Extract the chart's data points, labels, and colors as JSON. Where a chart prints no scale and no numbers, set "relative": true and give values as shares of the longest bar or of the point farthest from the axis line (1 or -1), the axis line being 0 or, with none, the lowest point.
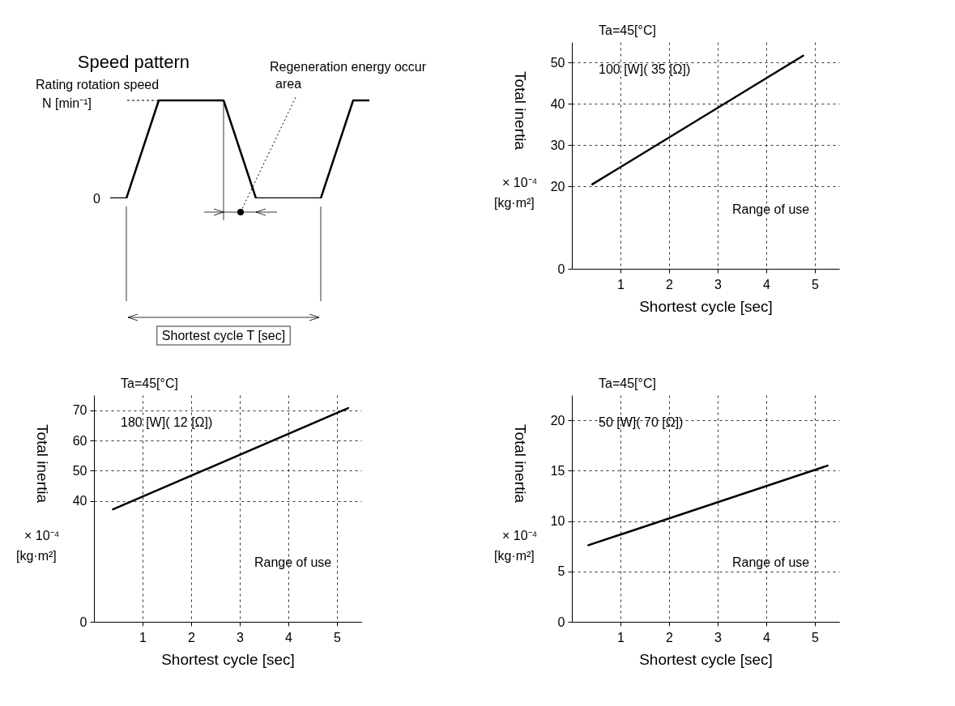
{
  "chart_data": [
    {
      "type": "line",
      "title": "Speed pattern",
      "relative": true,
      "categories": [
        null,
        null,
        null,
        null,
        null,
        null,
        null,
        null,
        null,
        null,
        null,
        null,
        null,
        null,
        null,
        null,
        null
      ],
      "series": [
        {
          "color": "#000000",
          "values": [
            0,
            0,
            0.5,
            1,
            1,
            1,
            1,
            1,
            0.5,
            0,
            0,
            0,
            0,
            0,
            0.5,
            1,
            1
          ]
        }
      ],
      "annotations": [
        "Rating rotation speed",
        "N [min⁻¹]",
        "0",
        "Regeneration energy occur area",
        "Shortest cycle T [sec]"
      ]
    },
    {
      "type": "line",
      "xlabel": "Shortest cycle [sec]",
      "ylabel": "Total inertia",
      "xlim": [
        0,
        5.5
      ],
      "ylim": [
        0,
        55
      ],
      "xticks": [
        1,
        2,
        3,
        4,
        5
      ],
      "yticks": [
        0,
        20,
        30,
        40,
        50
      ],
      "grid": true,
      "series": [
        {
          "color": "#000000",
          "x": [
            0.42,
            4.76
          ],
          "values": [
            20.5,
            51.7
          ]
        }
      ],
      "annotations": [
        "Ta=45[°C]",
        "100 [W]( 35 [Ω])",
        "Range of use",
        "× 10⁻⁴",
        "[kg·m²]"
      ]
    },
    {
      "type": "line",
      "xlabel": "Shortest cycle [sec]",
      "ylabel": "Total inertia",
      "xlim": [
        0,
        5.5
      ],
      "ylim": [
        0,
        75
      ],
      "xticks": [
        1,
        2,
        3,
        4,
        5
      ],
      "yticks": [
        0,
        40,
        50,
        60,
        70
      ],
      "grid": true,
      "series": [
        {
          "color": "#000000",
          "x": [
            0.39,
            5.23
          ],
          "values": [
            37.2,
            70.7
          ]
        }
      ],
      "annotations": [
        "Ta=45[°C]",
        "180 [W]( 12 [Ω])",
        "Range of use",
        "× 10⁻⁴",
        "[kg·m²]"
      ]
    },
    {
      "type": "line",
      "xlabel": "Shortest cycle [sec]",
      "ylabel": "Total inertia",
      "xlim": [
        0,
        5.5
      ],
      "ylim": [
        0,
        22.5
      ],
      "xticks": [
        1,
        2,
        3,
        4,
        5
      ],
      "yticks": [
        0,
        5,
        10,
        15,
        20
      ],
      "grid": true,
      "series": [
        {
          "color": "#000000",
          "x": [
            0.34,
            5.26
          ],
          "values": [
            7.6,
            15.5
          ]
        }
      ],
      "annotations": [
        "Ta=45[°C]",
        "50 [W]( 70 [Ω])",
        "Range of use",
        "× 10⁻⁴",
        "[kg·m²]"
      ]
    }
  ]
}
